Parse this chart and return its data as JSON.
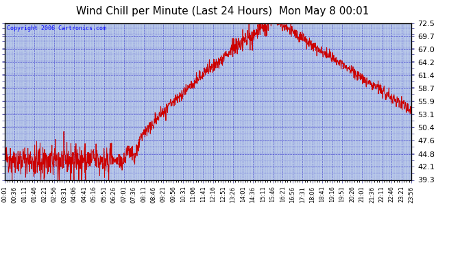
{
  "title": "Wind Chill per Minute (Last 24 Hours)  Mon May 8 00:01",
  "copyright": "Copyright 2006 Cartronics.com",
  "background_color": "#FFFFFF",
  "plot_bg_color": "#B8C8E8",
  "line_color": "#CC0000",
  "grid_color": "#3333CC",
  "yticks": [
    39.3,
    42.1,
    44.8,
    47.6,
    50.4,
    53.1,
    55.9,
    58.7,
    61.4,
    64.2,
    67.0,
    69.7,
    72.5
  ],
  "ymin": 39.3,
  "ymax": 72.5,
  "x_labels": [
    "00:01",
    "00:36",
    "01:11",
    "01:46",
    "02:21",
    "02:56",
    "03:31",
    "04:06",
    "04:41",
    "05:16",
    "05:51",
    "06:26",
    "07:01",
    "07:36",
    "08:11",
    "08:46",
    "09:21",
    "09:56",
    "10:31",
    "11:06",
    "11:41",
    "12:16",
    "12:51",
    "13:26",
    "14:01",
    "14:36",
    "15:11",
    "15:46",
    "16:21",
    "16:56",
    "17:31",
    "18:06",
    "18:41",
    "19:16",
    "19:51",
    "20:26",
    "21:01",
    "21:36",
    "22:11",
    "22:46",
    "23:21",
    "23:56"
  ],
  "num_points": 1440,
  "title_fontsize": 11,
  "copyright_fontsize": 6,
  "ytick_fontsize": 8,
  "xtick_fontsize": 6
}
